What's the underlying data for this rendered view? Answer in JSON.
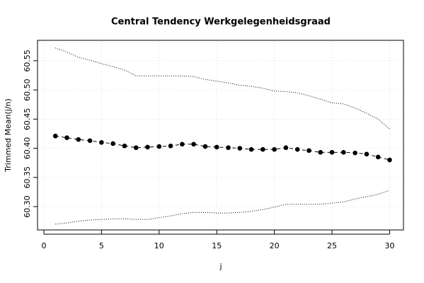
{
  "chart_data": {
    "type": "line",
    "title": "Central Tendency Werkgelegenheidsgraad",
    "x_label": "j",
    "y_label": "Trimmed Mean(j/n)",
    "x": [
      1,
      2,
      3,
      4,
      5,
      6,
      7,
      8,
      9,
      10,
      11,
      12,
      13,
      14,
      15,
      16,
      17,
      18,
      19,
      20,
      21,
      22,
      23,
      24,
      25,
      26,
      27,
      28,
      29,
      30
    ],
    "series": [
      {
        "color": "#000000",
        "style": "points-dashed",
        "values": [
          60.421,
          60.418,
          60.415,
          60.413,
          60.41,
          60.408,
          60.404,
          60.401,
          60.402,
          60.403,
          60.404,
          60.407,
          60.407,
          60.403,
          60.402,
          60.401,
          60.4,
          60.398,
          60.398,
          60.398,
          60.401,
          60.398,
          60.396,
          60.393,
          60.393,
          60.393,
          60.392,
          60.39,
          60.385,
          60.38
        ]
      },
      {
        "color": "#000000",
        "style": "dotted",
        "values": [
          60.572,
          60.565,
          60.556,
          60.551,
          60.545,
          60.54,
          60.534,
          60.524,
          60.524,
          60.524,
          60.524,
          60.524,
          60.523,
          60.518,
          60.515,
          60.512,
          60.508,
          60.506,
          60.503,
          60.498,
          60.497,
          60.495,
          60.49,
          60.484,
          60.478,
          60.476,
          60.469,
          60.46,
          60.45,
          60.433
        ]
      },
      {
        "color": "#000000",
        "style": "dotted",
        "values": [
          60.27,
          60.272,
          60.275,
          60.277,
          60.278,
          60.279,
          60.279,
          60.278,
          60.278,
          60.281,
          60.284,
          60.288,
          60.29,
          60.29,
          60.289,
          60.289,
          60.29,
          60.292,
          60.295,
          60.299,
          60.304,
          60.304,
          60.304,
          60.304,
          60.306,
          60.308,
          60.313,
          60.317,
          60.321,
          60.328
        ]
      }
    ],
    "xlim": [
      -0.55,
      31.2
    ],
    "xticks": [
      0,
      5,
      10,
      15,
      20,
      25,
      30
    ],
    "ylim": [
      60.26,
      60.585
    ],
    "yticks": [
      {
        "value": 60.3,
        "label": "60.30"
      },
      60.35,
      {
        "value": 60.4,
        "label": "60.40"
      },
      60.45,
      {
        "value": 60.5,
        "label": "60.50"
      },
      60.55
    ],
    "grid": true
  }
}
